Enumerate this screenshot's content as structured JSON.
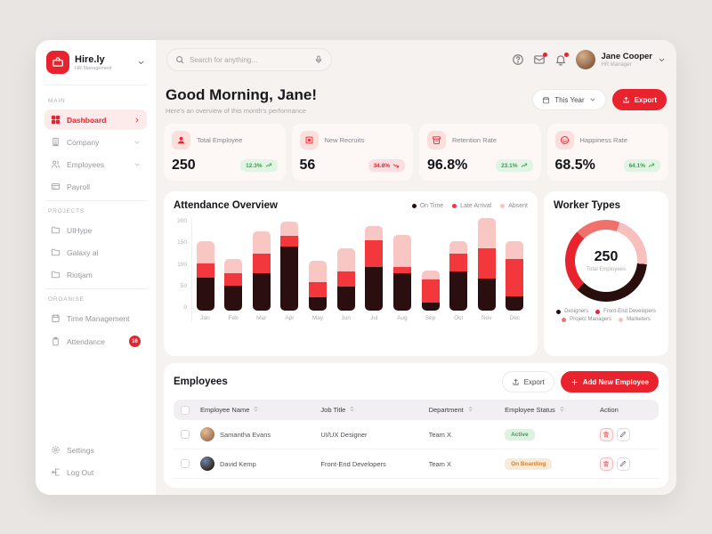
{
  "sidebar": {
    "logo": {
      "name": "Hire.ly",
      "subtitle": "HR Management"
    },
    "sections": [
      {
        "label": "MAIN",
        "items": [
          {
            "label": "Dashboard",
            "icon": "dashboard-icon",
            "active": true,
            "chevron": "right"
          },
          {
            "label": "Company",
            "icon": "company-icon",
            "chevron": "down"
          },
          {
            "label": "Employees",
            "icon": "employees-icon",
            "chevron": "down"
          },
          {
            "label": "Payroll",
            "icon": "payroll-icon"
          }
        ]
      },
      {
        "label": "PROJECTS",
        "items": [
          {
            "label": "UIHype",
            "icon": "folder-icon"
          },
          {
            "label": "Galaxy ai",
            "icon": "folder-icon"
          },
          {
            "label": "Riotjam",
            "icon": "folder-icon"
          }
        ]
      },
      {
        "label": "ORGANISE",
        "items": [
          {
            "label": "Time Management",
            "icon": "calendar-icon"
          },
          {
            "label": "Attendance",
            "icon": "clipboard-icon",
            "badge": "16"
          }
        ]
      }
    ],
    "footer_items": [
      {
        "label": "Settings",
        "icon": "gear-icon"
      },
      {
        "label": "Log Out",
        "icon": "logout-icon"
      }
    ]
  },
  "topbar": {
    "search_placeholder": "Search for anything...",
    "user": {
      "name": "Jane Cooper",
      "role": "HR Manager"
    }
  },
  "header": {
    "greeting": "Good Morning, Jane!",
    "subtitle": "Here's an overview of this month's performance",
    "period_label": "This Year",
    "export_label": "Export"
  },
  "stats": [
    {
      "label": "Total Employee",
      "value": "250",
      "change": "12.3%",
      "trend": "up",
      "icon": "person-icon"
    },
    {
      "label": "New Recruits",
      "value": "56",
      "change": "34.8%",
      "trend": "down",
      "icon": "recruit-icon"
    },
    {
      "label": "Retention Rate",
      "value": "96.8%",
      "change": "23.1%",
      "trend": "up",
      "icon": "retention-icon"
    },
    {
      "label": "Happiness Rate",
      "value": "68.5%",
      "change": "64.1%",
      "trend": "up",
      "icon": "smiley-icon"
    }
  ],
  "chart_data": [
    {
      "type": "bar",
      "title": "Attendance Overview",
      "stacked": true,
      "categories": [
        "Jan",
        "Feb",
        "Mar",
        "Apr",
        "May",
        "Jun",
        "Jul",
        "Aug",
        "Sep",
        "Oct",
        "Nov",
        "Dec"
      ],
      "series": [
        {
          "name": "On Time",
          "color": "#2a0e10",
          "values": [
            72,
            53,
            80,
            138,
            28,
            52,
            95,
            80,
            18,
            85,
            70,
            30
          ]
        },
        {
          "name": "Late Arrival",
          "color": "#f2383c",
          "values": [
            31,
            27,
            43,
            24,
            34,
            33,
            57,
            15,
            50,
            39,
            65,
            82
          ]
        },
        {
          "name": "Absent",
          "color": "#f8c6c3",
          "values": [
            47,
            32,
            49,
            31,
            46,
            50,
            31,
            68,
            19,
            26,
            67,
            38
          ]
        }
      ],
      "ylim": [
        0,
        200
      ],
      "yticks": [
        0,
        50,
        100,
        150,
        200
      ],
      "grid": false,
      "legend_position": "top-right"
    },
    {
      "type": "pie",
      "title": "Worker Types",
      "center_value": "250",
      "center_label": "Total Employees",
      "donut": true,
      "start_angle_deg": 95,
      "slices": [
        {
          "label": "Designers",
          "percent": 36,
          "color": "#2a0d0d"
        },
        {
          "label": "Front-End Developers",
          "percent": 25,
          "color": "#e8232e"
        },
        {
          "label": "Project Managers",
          "percent": 18,
          "color": "#f0716c"
        },
        {
          "label": "Marketers",
          "percent": 21,
          "color": "#f8c0bc"
        }
      ],
      "legend_position": "bottom"
    }
  ],
  "employees_section": {
    "title": "Employees",
    "export_label": "Export",
    "add_button_label": "Add New Employee",
    "columns": [
      {
        "label": "Employee Name",
        "sortable": true
      },
      {
        "label": "Job Title",
        "sortable": true
      },
      {
        "label": "Department",
        "sortable": true
      },
      {
        "label": "Employee Status",
        "sortable": true
      },
      {
        "label": "Action",
        "sortable": false
      }
    ],
    "rows": [
      {
        "name": "Samantha Evans",
        "job_title": "UI/UX Designer",
        "department": "Team X",
        "status": "Active",
        "status_color": "#3f9e55",
        "status_bg": "#ddf2e1"
      },
      {
        "name": "David Kemp",
        "job_title": "Front-End Developers",
        "department": "Team X",
        "status": "On Boarding",
        "status_color": "#c9853f",
        "status_bg": "#f9ead9"
      }
    ]
  },
  "colors": {
    "accent_red": "#e8232e",
    "active_item_bg": "#fdeaea",
    "main_bg": "#f5f2ef",
    "stat_card_bg": "#fdf7f5",
    "trend_up": "#37a24a",
    "trend_down": "#e8232e"
  }
}
